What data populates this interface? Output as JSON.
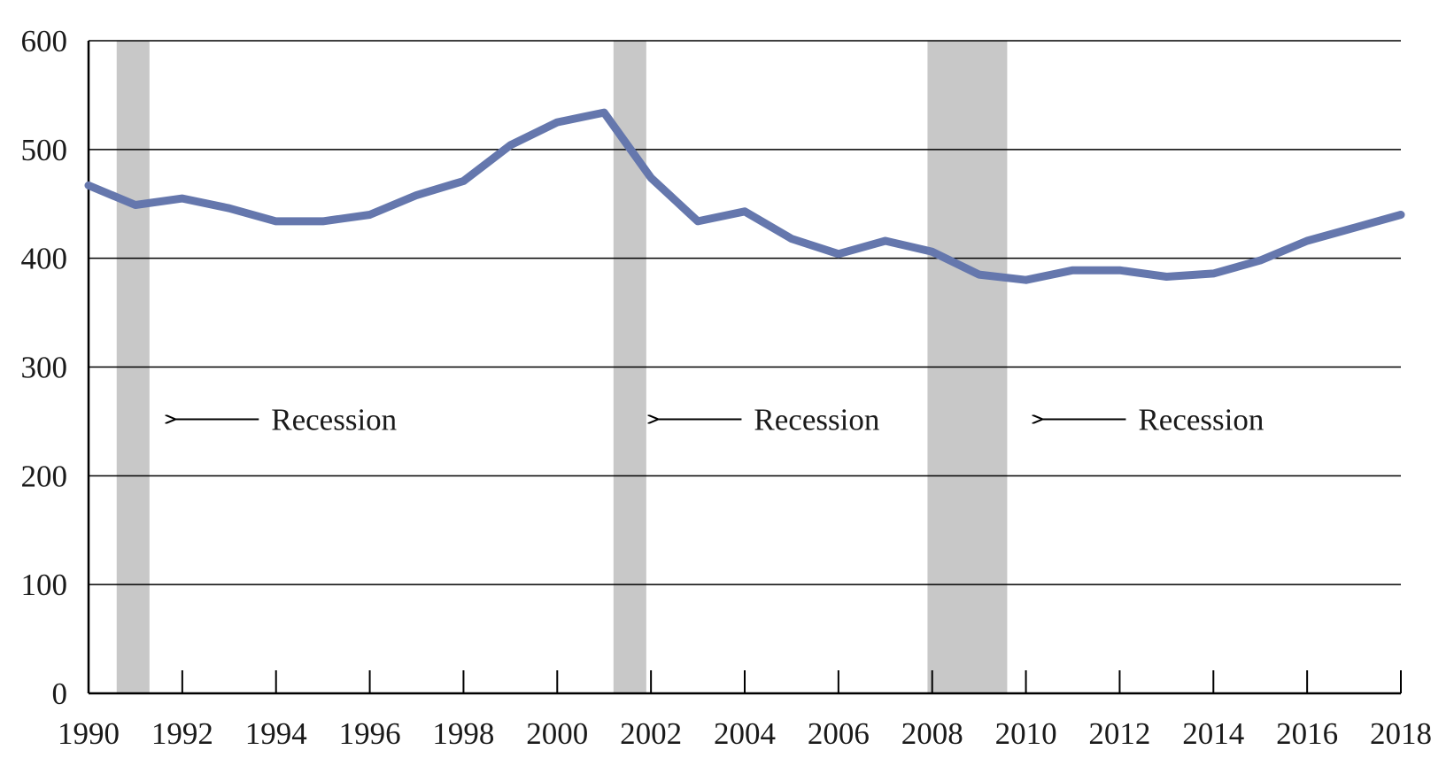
{
  "chart_data": {
    "type": "line",
    "title": "",
    "xlabel": "",
    "ylabel": "",
    "xlim": [
      1990,
      2018
    ],
    "ylim": [
      0,
      600
    ],
    "grid": true,
    "x_ticks": [
      "1990",
      "1992",
      "1994",
      "1996",
      "1998",
      "2000",
      "2002",
      "2004",
      "2006",
      "2008",
      "2010",
      "2012",
      "2014",
      "2016",
      "2018"
    ],
    "y_ticks": [
      "0",
      "100",
      "200",
      "300",
      "400",
      "500",
      "600"
    ],
    "x": [
      1990,
      1991,
      1992,
      1993,
      1994,
      1995,
      1996,
      1997,
      1998,
      1999,
      2000,
      2001,
      2002,
      2003,
      2004,
      2005,
      2006,
      2007,
      2008,
      2009,
      2010,
      2011,
      2012,
      2013,
      2014,
      2015,
      2016,
      2017,
      2018
    ],
    "series": [
      {
        "values": [
          467,
          449,
          455,
          446,
          434,
          434,
          440,
          458,
          471,
          504,
          525,
          534,
          474,
          434,
          443,
          418,
          404,
          416,
          406,
          385,
          380,
          389,
          389,
          383,
          386,
          398,
          416,
          428,
          440
        ]
      }
    ],
    "recessions": [
      {
        "start": 1990.6,
        "end": 1991.3
      },
      {
        "start": 2001.2,
        "end": 2001.9
      },
      {
        "start": 2007.9,
        "end": 2009.6
      }
    ],
    "annotations": [
      {
        "text": "Recession",
        "arrow_to_x": 1991.8,
        "y": 252
      },
      {
        "text": "Recession",
        "arrow_to_x": 2002.1,
        "y": 252
      },
      {
        "text": "Recession",
        "arrow_to_x": 2010.3,
        "y": 252
      }
    ],
    "colors": {
      "line": "#6577ad",
      "recession": "#c8c8c8",
      "grid": "#000000",
      "axis": "#000000"
    }
  }
}
